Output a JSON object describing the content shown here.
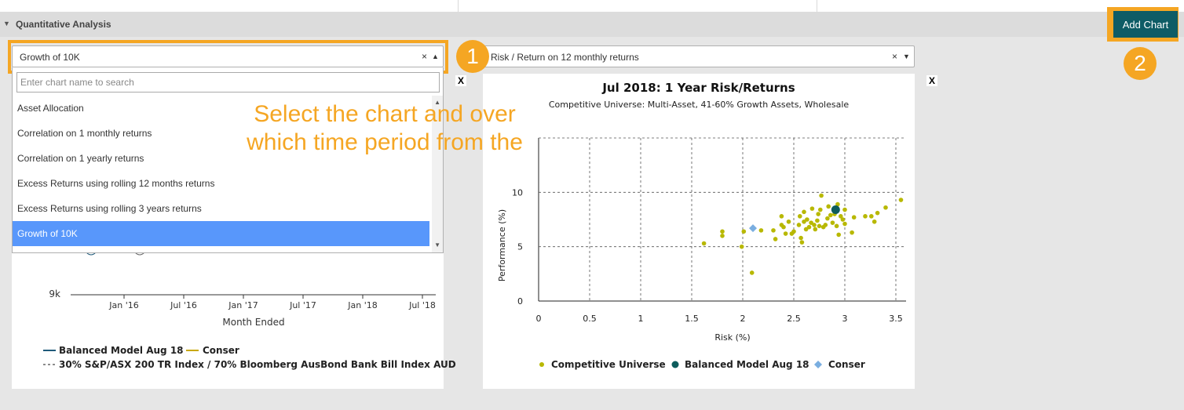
{
  "section": {
    "arrow": "▼",
    "title": "Quantitative Analysis"
  },
  "toolbar": {
    "add_chart_label": "Add Chart"
  },
  "badges": {
    "one": "1",
    "two": "2"
  },
  "annotation": {
    "text": "Select the chart and over which time period from the"
  },
  "left_panel": {
    "select_value": "Growth of 10K",
    "clear": "×",
    "caret": "▲",
    "close": "X",
    "dropdown": {
      "search_placeholder": "Enter chart name to search",
      "options": [
        "Asset Allocation",
        "Correlation on 1 monthly returns",
        "Correlation on 1 yearly returns",
        "Excess Returns using rolling 12 months returns",
        "Excess Returns using rolling 3 years returns",
        "Growth of 10K"
      ],
      "selected_index": 5
    },
    "chart": {
      "y_tick": "9k",
      "x_ticks": [
        "Jan '16",
        "Jul '16",
        "Jan '17",
        "Jul '17",
        "Jan '18",
        "Jul '18"
      ],
      "xlabel": "Month Ended",
      "legend": [
        {
          "name": "Balanced Model Aug 18",
          "color": "#1f5a7a",
          "style": "solid"
        },
        {
          "name": "Conser",
          "color": "#c9a800",
          "style": "solid"
        },
        {
          "name": "30% S&P/ASX 200 TR Index / 70% Bloomberg AusBond Bank Bill Index AUD",
          "color": "#666666",
          "style": "dashed"
        }
      ]
    }
  },
  "right_panel": {
    "select_value": "Risk / Return on 12 monthly returns",
    "clear": "×",
    "caret": "▼",
    "close": "X"
  },
  "chart_data": {
    "type": "scatter",
    "title": "Jul 2018: 1 Year Risk/Returns",
    "subtitle": "Competitive Universe: Multi-Asset, 41-60% Growth Assets, Wholesale",
    "xlabel": "Risk (%)",
    "ylabel": "Performance (%)",
    "xlim": [
      0,
      3.6
    ],
    "ylim": [
      0,
      15
    ],
    "x_ticks": [
      "0",
      "0.5",
      "1",
      "1.5",
      "2",
      "2.5",
      "3",
      "3.5"
    ],
    "y_ticks": [
      "0",
      "5",
      "10"
    ],
    "grid": true,
    "legend_position": "bottom",
    "series": [
      {
        "name": "Competitive Universe",
        "color": "#b8b800",
        "marker": "circle",
        "points": [
          [
            1.62,
            5.3
          ],
          [
            1.8,
            6.0
          ],
          [
            1.8,
            6.4
          ],
          [
            1.99,
            5.0
          ],
          [
            2.01,
            6.4
          ],
          [
            2.09,
            2.6
          ],
          [
            2.18,
            6.5
          ],
          [
            2.3,
            6.5
          ],
          [
            2.32,
            5.7
          ],
          [
            2.38,
            7.8
          ],
          [
            2.38,
            7.0
          ],
          [
            2.4,
            6.8
          ],
          [
            2.42,
            6.2
          ],
          [
            2.45,
            7.3
          ],
          [
            2.48,
            6.2
          ],
          [
            2.5,
            6.4
          ],
          [
            2.55,
            7.0
          ],
          [
            2.56,
            7.8
          ],
          [
            2.57,
            5.8
          ],
          [
            2.58,
            5.4
          ],
          [
            2.6,
            8.2
          ],
          [
            2.6,
            7.3
          ],
          [
            2.62,
            6.6
          ],
          [
            2.63,
            7.5
          ],
          [
            2.65,
            6.8
          ],
          [
            2.67,
            7.2
          ],
          [
            2.68,
            8.5
          ],
          [
            2.7,
            7.0
          ],
          [
            2.71,
            6.6
          ],
          [
            2.73,
            7.4
          ],
          [
            2.74,
            8.0
          ],
          [
            2.75,
            6.9
          ],
          [
            2.76,
            8.4
          ],
          [
            2.77,
            9.7
          ],
          [
            2.79,
            6.8
          ],
          [
            2.81,
            7.0
          ],
          [
            2.83,
            7.6
          ],
          [
            2.84,
            8.7
          ],
          [
            2.86,
            7.9
          ],
          [
            2.88,
            7.2
          ],
          [
            2.9,
            8.0
          ],
          [
            2.92,
            6.9
          ],
          [
            2.93,
            8.9
          ],
          [
            2.94,
            6.1
          ],
          [
            2.96,
            7.8
          ],
          [
            2.98,
            7.5
          ],
          [
            3.0,
            8.4
          ],
          [
            3.0,
            7.1
          ],
          [
            3.07,
            6.3
          ],
          [
            3.09,
            7.7
          ],
          [
            3.2,
            7.8
          ],
          [
            3.26,
            7.8
          ],
          [
            3.29,
            7.3
          ],
          [
            3.32,
            8.1
          ],
          [
            3.4,
            8.6
          ],
          [
            3.55,
            9.3
          ]
        ]
      },
      {
        "name": "Balanced Model Aug 18",
        "color": "#0d5c5c",
        "marker": "circle",
        "points": [
          [
            2.91,
            8.4
          ]
        ]
      },
      {
        "name": "Conser",
        "color": "#7aaee0",
        "marker": "diamond",
        "points": [
          [
            2.1,
            6.7
          ]
        ]
      }
    ]
  }
}
